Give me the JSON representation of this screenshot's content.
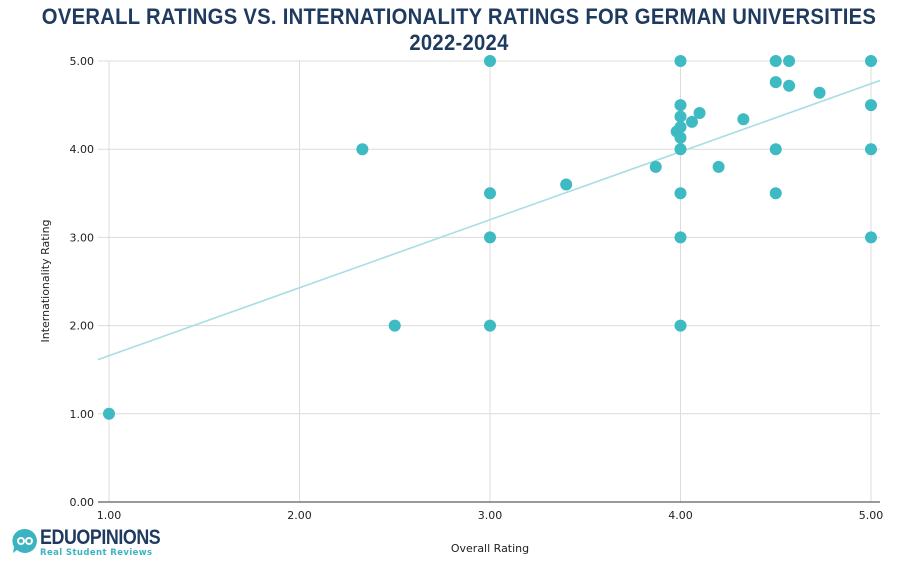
{
  "chart_data": {
    "type": "scatter",
    "title": "OVERALL RATINGS VS. INTERNATIONALITY RATINGS FOR GERMAN UNIVERSITIES 2022-2024",
    "title_lines": [
      "OVERALL RATINGS VS. INTERNATIONALITY RATINGS FOR GERMAN UNIVERSITIES",
      "2022-2024"
    ],
    "xlabel": "Overall Rating",
    "ylabel": "Internationality Rating",
    "xlim": [
      0.94,
      5.05
    ],
    "ylim": [
      0,
      5
    ],
    "xticks": [
      "1.00",
      "2.00",
      "3.00",
      "4.00",
      "5.00"
    ],
    "yticks": [
      "0.00",
      "1.00",
      "2.00",
      "3.00",
      "4.00",
      "5.00"
    ],
    "grid": true,
    "point_color": "#3dbac2",
    "trendline_color": "#a8dde5",
    "trendline": {
      "slope": 0.77,
      "intercept": 0.89
    },
    "points": [
      [
        1.0,
        1.0
      ],
      [
        2.33,
        4.0
      ],
      [
        2.5,
        2.0
      ],
      [
        3.0,
        5.0
      ],
      [
        3.0,
        3.5
      ],
      [
        3.0,
        3.0
      ],
      [
        3.0,
        2.0
      ],
      [
        3.4,
        3.6
      ],
      [
        3.87,
        3.8
      ],
      [
        4.0,
        5.0
      ],
      [
        4.0,
        4.5
      ],
      [
        4.0,
        4.37
      ],
      [
        4.0,
        4.25
      ],
      [
        3.98,
        4.2
      ],
      [
        4.0,
        4.13
      ],
      [
        4.0,
        4.0
      ],
      [
        4.0,
        3.5
      ],
      [
        4.0,
        3.0
      ],
      [
        4.0,
        2.0
      ],
      [
        4.06,
        4.31
      ],
      [
        4.1,
        4.41
      ],
      [
        4.2,
        3.8
      ],
      [
        4.33,
        4.34
      ],
      [
        4.5,
        5.0
      ],
      [
        4.5,
        4.76
      ],
      [
        4.5,
        4.0
      ],
      [
        4.5,
        3.5
      ],
      [
        4.57,
        5.0
      ],
      [
        4.57,
        4.72
      ],
      [
        4.73,
        4.64
      ],
      [
        5.0,
        5.0
      ],
      [
        5.0,
        4.5
      ],
      [
        5.0,
        4.0
      ],
      [
        5.0,
        3.0
      ]
    ]
  },
  "logo": {
    "name": "EDUOPINIONS",
    "tagline": "Real Student Reviews"
  }
}
